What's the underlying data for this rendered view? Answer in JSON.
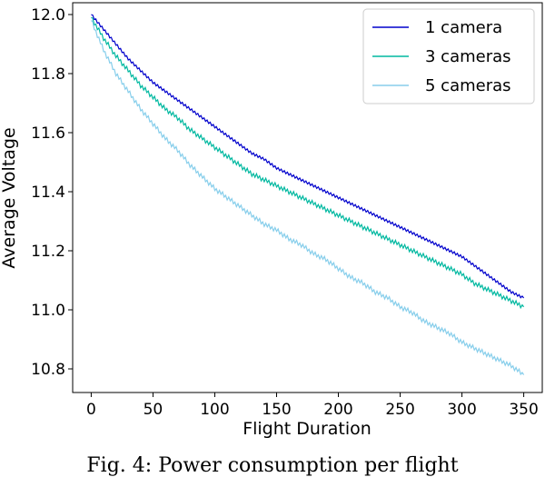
{
  "chart_data": {
    "type": "line",
    "title": "",
    "xlabel": "Flight Duration",
    "ylabel": "Average Voltage",
    "xlim": [
      -15,
      365
    ],
    "ylim": [
      10.72,
      12.04
    ],
    "xticks": [
      0,
      50,
      100,
      150,
      200,
      250,
      300,
      350
    ],
    "yticks": [
      10.8,
      11.0,
      11.2,
      11.4,
      11.6,
      11.8,
      12.0
    ],
    "grid": false,
    "legend_position": "top-right",
    "series": [
      {
        "name": "1 camera",
        "color": "#0000cc",
        "x": [
          0,
          10,
          20,
          30,
          40,
          50,
          60,
          70,
          80,
          90,
          100,
          110,
          120,
          130,
          140,
          150,
          160,
          170,
          180,
          190,
          200,
          210,
          220,
          230,
          240,
          250,
          260,
          270,
          280,
          290,
          300,
          310,
          320,
          330,
          340,
          350
        ],
        "y": [
          12.0,
          11.95,
          11.9,
          11.85,
          11.81,
          11.77,
          11.74,
          11.71,
          11.68,
          11.65,
          11.62,
          11.59,
          11.56,
          11.53,
          11.51,
          11.48,
          11.46,
          11.44,
          11.42,
          11.4,
          11.38,
          11.36,
          11.34,
          11.32,
          11.3,
          11.28,
          11.26,
          11.24,
          11.22,
          11.2,
          11.18,
          11.15,
          11.12,
          11.09,
          11.06,
          11.04
        ]
      },
      {
        "name": "3 cameras",
        "color": "#00b8a0",
        "x": [
          0,
          10,
          20,
          30,
          40,
          50,
          60,
          70,
          80,
          90,
          100,
          110,
          120,
          130,
          140,
          150,
          160,
          170,
          180,
          190,
          200,
          210,
          220,
          230,
          240,
          250,
          260,
          270,
          280,
          290,
          300,
          310,
          320,
          330,
          340,
          350
        ],
        "y": [
          11.99,
          11.92,
          11.86,
          11.81,
          11.76,
          11.72,
          11.68,
          11.65,
          11.61,
          11.58,
          11.55,
          11.52,
          11.49,
          11.46,
          11.44,
          11.42,
          11.4,
          11.38,
          11.36,
          11.34,
          11.32,
          11.3,
          11.28,
          11.26,
          11.24,
          11.22,
          11.2,
          11.18,
          11.16,
          11.14,
          11.12,
          11.09,
          11.07,
          11.05,
          11.03,
          11.01
        ]
      },
      {
        "name": "5 cameras",
        "color": "#87ceeb",
        "x": [
          0,
          10,
          20,
          30,
          40,
          50,
          60,
          70,
          80,
          90,
          100,
          110,
          120,
          130,
          140,
          150,
          160,
          170,
          180,
          190,
          200,
          210,
          220,
          230,
          240,
          250,
          260,
          270,
          280,
          290,
          300,
          310,
          320,
          330,
          340,
          350
        ],
        "y": [
          11.98,
          11.88,
          11.8,
          11.74,
          11.68,
          11.63,
          11.58,
          11.54,
          11.49,
          11.45,
          11.41,
          11.38,
          11.35,
          11.32,
          11.29,
          11.27,
          11.24,
          11.22,
          11.19,
          11.17,
          11.14,
          11.11,
          11.09,
          11.06,
          11.04,
          11.01,
          10.99,
          10.96,
          10.94,
          10.92,
          10.89,
          10.87,
          10.85,
          10.83,
          10.81,
          10.78
        ]
      }
    ]
  },
  "caption": "Fig. 4: Power consumption per flight"
}
